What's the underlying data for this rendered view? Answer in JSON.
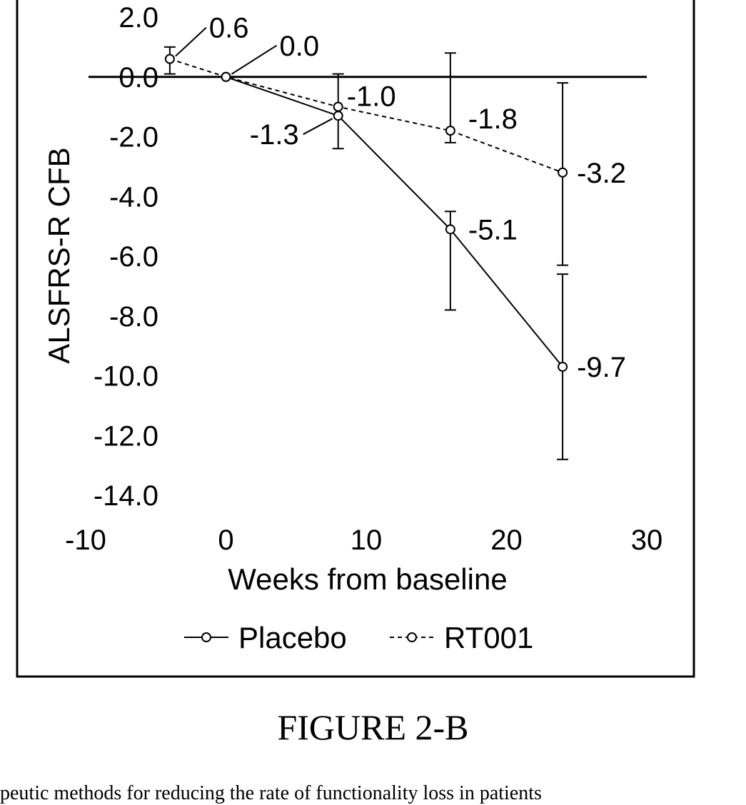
{
  "chart_data": {
    "type": "line",
    "xlabel": "Weeks from baseline",
    "ylabel": "ALSFRS-R CFB",
    "xlim": [
      -10,
      30
    ],
    "ylim": [
      -14,
      2
    ],
    "x_ticks": [
      "-10",
      "0",
      "10",
      "20",
      "30"
    ],
    "y_ticks": [
      "2.0",
      "0.0",
      "-2.0",
      "-4.0",
      "-6.0",
      "-8.0",
      "-10.0",
      "-12.0",
      "-14.0"
    ],
    "grid": false,
    "reference_line_y": 0,
    "legend_position": "bottom",
    "series": [
      {
        "name": "Placebo",
        "line_style": "solid",
        "x": [
          0,
          8,
          16,
          24
        ],
        "y": [
          0.0,
          -1.3,
          -5.1,
          -9.7
        ],
        "labels": [
          "",
          "-1.3",
          "-5.1",
          "-9.7"
        ],
        "error_low": [
          null,
          -2.4,
          -7.8,
          -12.8
        ],
        "error_high": [
          null,
          null,
          -4.5,
          -6.6
        ]
      },
      {
        "name": "RT001",
        "line_style": "dashed",
        "x": [
          -4,
          0,
          8,
          16,
          24
        ],
        "y": [
          0.6,
          0.0,
          -1.0,
          -1.8,
          -3.2
        ],
        "labels": [
          "0.6",
          "0.0",
          "-1.0",
          "-1.8",
          "-3.2"
        ],
        "error_low": [
          0.1,
          null,
          null,
          -2.2,
          -6.3
        ],
        "error_high": [
          1.0,
          null,
          0.1,
          0.8,
          -0.2
        ]
      }
    ]
  },
  "caption": "FIGURE 2-B",
  "footer_text": "peutic methods for reducing the rate of functionality loss in patients"
}
